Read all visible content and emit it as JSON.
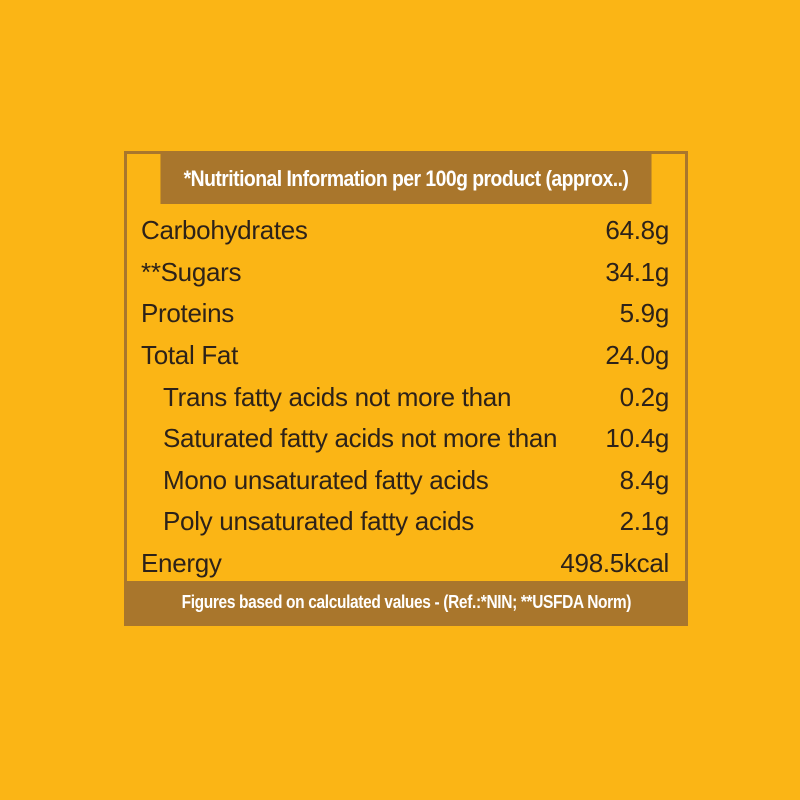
{
  "panel": {
    "title": "*Nutritional Information per 100g product (approx..)",
    "footer": "Figures based on calculated values - (Ref.:*NIN; **USFDA Norm)",
    "rows": [
      {
        "label": "Carbohydrates",
        "value": "64.8g"
      },
      {
        "label": "**Sugars",
        "value": "34.1g"
      },
      {
        "label": "Proteins",
        "value": "5.9g"
      },
      {
        "label": "Total Fat",
        "value": "24.0g"
      },
      {
        "label": "Trans fatty acids not more than",
        "value": "0.2g"
      },
      {
        "label": "Saturated fatty acids not more than",
        "value": "10.4g"
      },
      {
        "label": "Mono unsaturated fatty acids",
        "value": "8.4g"
      },
      {
        "label": "Poly unsaturated fatty acids",
        "value": "2.1g"
      },
      {
        "label": "Energy",
        "value": "498.5kcal"
      }
    ]
  },
  "colors": {
    "background": "#FBB515",
    "panel_accent": "#A9762C",
    "text": "#2D2219",
    "header_text": "#FFFFFF"
  }
}
